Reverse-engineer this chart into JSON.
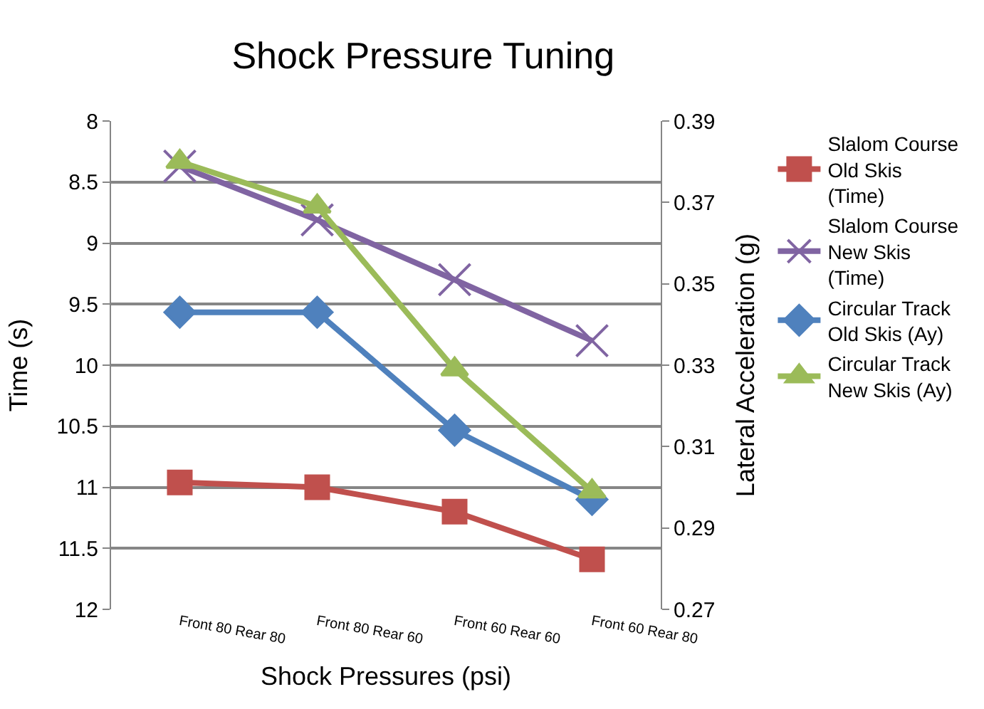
{
  "chart_data": {
    "type": "line",
    "title": "Shock Pressure Tuning",
    "xlabel": "Shock Pressures (psi)",
    "ylabel": "Time (s)",
    "y2label": "Lateral Acceleration (g)",
    "categories": [
      "Front 80 Rear 80",
      "Front 80 Rear 60",
      "Front 60 Rear 60",
      "Front 60 Rear 80"
    ],
    "series": [
      {
        "name": "Slalom Course Old Skis (Time)",
        "color": "#c0504d",
        "marker": "square",
        "values": [
          10.96,
          11.0,
          11.2,
          11.59
        ]
      },
      {
        "name": "Slalom Course New Skis (Time)",
        "color": "#8064a2",
        "marker": "cross",
        "values": [
          8.37,
          8.81,
          9.3,
          9.8
        ]
      },
      {
        "name": "Circular Track Old Skis (Ay)",
        "color": "#4f81bd",
        "marker": "diamond",
        "axis": "y2",
        "values": [
          0.343,
          0.343,
          0.314,
          0.297
        ]
      },
      {
        "name": "Circular Track New Skis (Ay)",
        "color": "#9bbb59",
        "marker": "triangle",
        "axis": "y2",
        "values": [
          0.38,
          0.369,
          0.329,
          0.299
        ]
      }
    ],
    "ylim": [
      12,
      8
    ],
    "yticks": [
      8,
      8.5,
      9,
      9.5,
      10,
      10.5,
      11,
      11.5,
      12
    ],
    "y2lim": [
      0.27,
      0.39
    ],
    "y2ticks": [
      0.27,
      0.29,
      0.31,
      0.33,
      0.35,
      0.37,
      0.39
    ],
    "grid": "y",
    "legend": "right"
  }
}
